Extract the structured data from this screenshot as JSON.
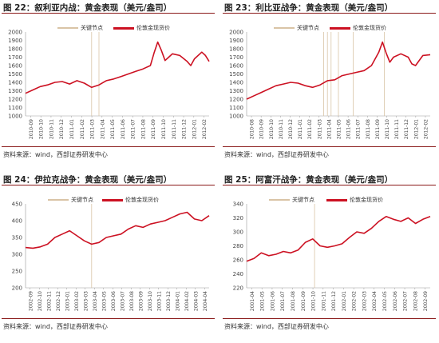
{
  "legend": {
    "key_node": "关键节点",
    "price": "伦敦金现货价"
  },
  "colors": {
    "price": "#cc1122",
    "key_node": "#d9c4a6",
    "title_rule": "#8b1a1a"
  },
  "source": "资料来源：wind，西部证券研发中心",
  "chart_data": [
    {
      "type": "line",
      "title": "图 22：叙利亚内战：黄金表现（美元/盎司）",
      "ylim": [
        1000,
        2000
      ],
      "yticks": [
        1000,
        1100,
        1200,
        1300,
        1400,
        1500,
        1600,
        1700,
        1800,
        1900,
        2000
      ],
      "xticks": [
        "2010-09",
        "2010-10",
        "2010-11",
        "2010-12",
        "2011-01",
        "2011-02",
        "2011-03",
        "2011-04",
        "2011-05",
        "2011-06",
        "2011-07",
        "2011-08",
        "2011-09",
        "2011-10",
        "2011-11",
        "2011-12",
        "2012-01",
        "2012-02"
      ],
      "key_nodes": [
        0.36,
        0.4
      ],
      "series": [
        {
          "name": "伦敦金现货价",
          "x": [
            0,
            0.04,
            0.08,
            0.12,
            0.16,
            0.2,
            0.24,
            0.28,
            0.32,
            0.36,
            0.4,
            0.44,
            0.48,
            0.52,
            0.56,
            0.6,
            0.64,
            0.68,
            0.7,
            0.72,
            0.74,
            0.76,
            0.78,
            0.8,
            0.84,
            0.88,
            0.9,
            0.92,
            0.96,
            0.98,
            1
          ],
          "y": [
            1270,
            1310,
            1350,
            1370,
            1400,
            1410,
            1380,
            1420,
            1390,
            1340,
            1370,
            1420,
            1440,
            1470,
            1500,
            1530,
            1560,
            1600,
            1750,
            1880,
            1780,
            1660,
            1700,
            1740,
            1720,
            1650,
            1600,
            1680,
            1760,
            1720,
            1650
          ]
        }
      ]
    },
    {
      "type": "line",
      "title": "图 23：利比亚战争：黄金表现（美元/盎司）",
      "ylim": [
        1000,
        2000
      ],
      "yticks": [
        1000,
        1100,
        1200,
        1300,
        1400,
        1500,
        1600,
        1700,
        1800,
        1900,
        2000
      ],
      "xticks": [
        "2010-08",
        "2010-09",
        "2010-10",
        "2010-11",
        "2010-12",
        "2011-01",
        "2011-02",
        "2011-03",
        "2011-04",
        "2011-05",
        "2011-06",
        "2011-07",
        "2011-08",
        "2011-09",
        "2011-10",
        "2011-11",
        "2011-12",
        "2012-01",
        "2012-02"
      ],
      "key_nodes": [
        0.42,
        0.44,
        0.46,
        0.5,
        0.58,
        0.75
      ],
      "series": [
        {
          "name": "伦敦金现货价",
          "x": [
            0,
            0.04,
            0.08,
            0.12,
            0.16,
            0.2,
            0.24,
            0.28,
            0.32,
            0.36,
            0.4,
            0.44,
            0.48,
            0.52,
            0.56,
            0.6,
            0.64,
            0.68,
            0.72,
            0.74,
            0.76,
            0.78,
            0.8,
            0.84,
            0.88,
            0.9,
            0.92,
            0.96,
            1
          ],
          "y": [
            1200,
            1240,
            1280,
            1320,
            1360,
            1380,
            1400,
            1390,
            1360,
            1340,
            1370,
            1420,
            1430,
            1480,
            1500,
            1520,
            1540,
            1600,
            1760,
            1880,
            1750,
            1640,
            1700,
            1740,
            1700,
            1620,
            1600,
            1720,
            1730
          ]
        }
      ]
    },
    {
      "type": "line",
      "title": "图 24：伊拉克战争：黄金表现（美元/盎司）",
      "ylim": [
        200,
        450
      ],
      "yticks": [
        200,
        250,
        300,
        350,
        400,
        450
      ],
      "xticks": [
        "2002-09",
        "2002-10",
        "2002-11",
        "2002-12",
        "2003-01",
        "2003-02",
        "2003-03",
        "2003-04",
        "2003-05",
        "2003-06",
        "2003-07",
        "2003-08",
        "2003-09",
        "2003-10",
        "2003-11",
        "2003-12",
        "2004-01",
        "2004-02",
        "2004-03",
        "2004-04"
      ],
      "key_nodes": [
        0.36
      ],
      "series": [
        {
          "name": "伦敦金现货价",
          "x": [
            0,
            0.04,
            0.08,
            0.12,
            0.16,
            0.2,
            0.24,
            0.28,
            0.32,
            0.36,
            0.4,
            0.44,
            0.48,
            0.52,
            0.56,
            0.6,
            0.64,
            0.68,
            0.72,
            0.76,
            0.8,
            0.84,
            0.88,
            0.92,
            0.96,
            1
          ],
          "y": [
            320,
            318,
            322,
            330,
            350,
            360,
            370,
            355,
            340,
            330,
            335,
            350,
            355,
            360,
            375,
            385,
            380,
            390,
            395,
            400,
            410,
            420,
            425,
            405,
            400,
            415
          ]
        }
      ]
    },
    {
      "type": "line",
      "title": "图 25：阿富汗战争：黄金表现（美元/盎司）",
      "ylim": [
        220,
        340
      ],
      "yticks": [
        220,
        240,
        260,
        280,
        300,
        320,
        340
      ],
      "xticks": [
        "2001-04",
        "2001-05",
        "2001-06",
        "2001-07",
        "2001-08",
        "2001-09",
        "2001-10",
        "2001-11",
        "2001-12",
        "2002-01",
        "2002-02",
        "2002-03",
        "2002-04",
        "2002-05",
        "2002-06",
        "2002-07",
        "2002-08",
        "2002-09"
      ],
      "key_nodes": [
        0.37
      ],
      "series": [
        {
          "name": "伦敦金现货价",
          "x": [
            0,
            0.04,
            0.08,
            0.12,
            0.16,
            0.2,
            0.24,
            0.28,
            0.32,
            0.36,
            0.4,
            0.44,
            0.48,
            0.52,
            0.56,
            0.6,
            0.64,
            0.68,
            0.72,
            0.76,
            0.8,
            0.84,
            0.88,
            0.92,
            0.96,
            1
          ],
          "y": [
            258,
            262,
            270,
            266,
            268,
            272,
            270,
            274,
            285,
            290,
            280,
            278,
            280,
            283,
            292,
            300,
            298,
            305,
            315,
            322,
            318,
            315,
            320,
            312,
            318,
            322
          ]
        }
      ]
    }
  ]
}
